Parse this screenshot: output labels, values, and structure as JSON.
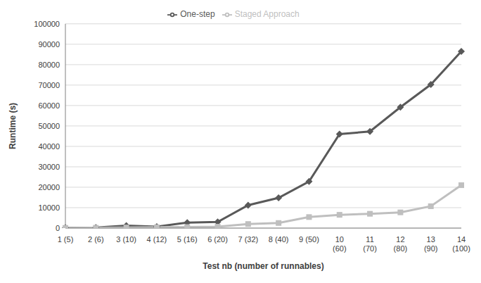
{
  "chart_data": {
    "type": "line",
    "x_label": "Test nb (number of runnables)",
    "y_label": "Runtime (s)",
    "categories": [
      "1 (5)",
      "2 (6)",
      "3 (10)",
      "4 (12)",
      "5 (16)",
      "6 (20)",
      "7 (32)",
      "8 (40)",
      "9 (50)",
      "10 (60)",
      "11 (70)",
      "12 (80)",
      "13 (90)",
      "14 (100)"
    ],
    "series": [
      {
        "name": "One-step",
        "color": "#595959",
        "marker": "diamond",
        "values": [
          200,
          300,
          1200,
          700,
          2700,
          3000,
          11200,
          14800,
          22800,
          46000,
          47300,
          59200,
          70300,
          86500
        ]
      },
      {
        "name": "Staged Approach",
        "color": "#bfbfbf",
        "marker": "square",
        "values": [
          100,
          150,
          300,
          400,
          500,
          700,
          2000,
          2500,
          5400,
          6500,
          7000,
          7700,
          10700,
          21000
        ]
      }
    ],
    "ylim": [
      0,
      100000
    ],
    "yticks": [
      0,
      10000,
      20000,
      30000,
      40000,
      50000,
      60000,
      70000,
      80000,
      90000,
      100000
    ],
    "grid": true,
    "legend": "top"
  }
}
